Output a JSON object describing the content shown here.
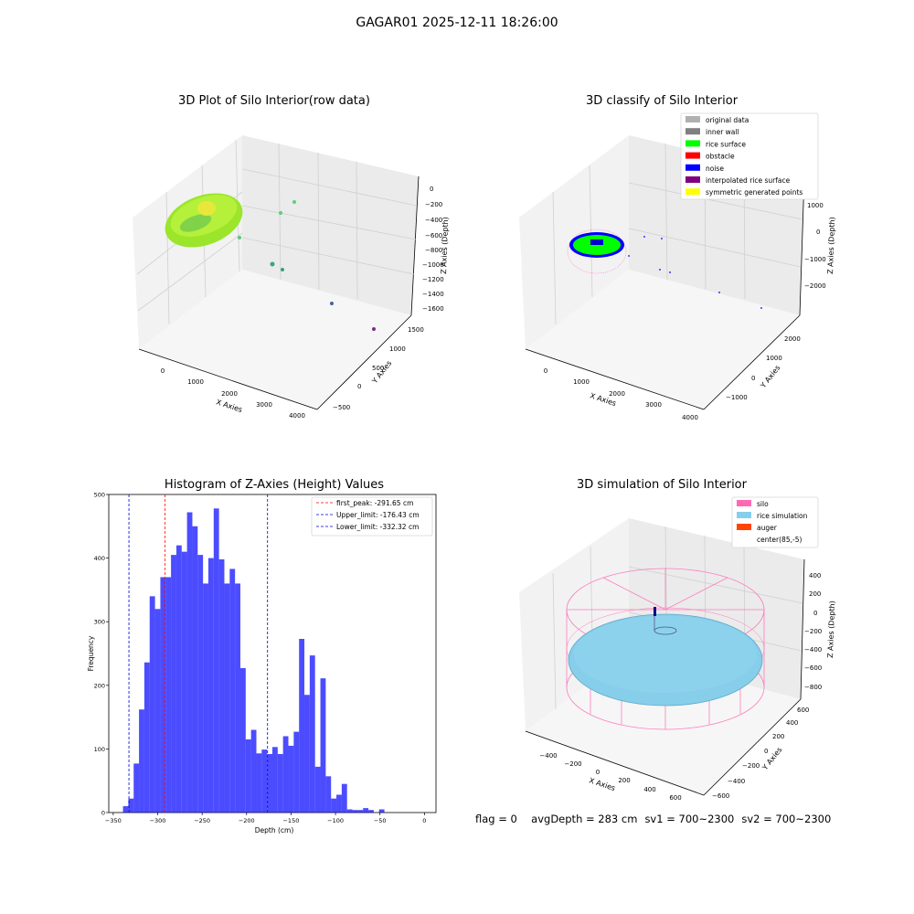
{
  "figure": {
    "suptitle": "GAGAR01 2025-12-11 18:26:00",
    "footer": {
      "flag": "flag = 0",
      "avg_depth": "avgDepth = 283 cm",
      "sv1": "sv1 = 700~2300",
      "sv2": "sv2 = 700~2300"
    }
  },
  "panels": {
    "raw": {
      "title": "3D Plot of Silo Interior(row data)",
      "xlabel": "X Axies",
      "ylabel": "Y Axies",
      "zlabel": "Z Axies (Depth)",
      "x_ticks": [
        "0",
        "1000",
        "2000",
        "3000",
        "4000"
      ],
      "y_ticks": [
        "−500",
        "0",
        "500",
        "1000",
        "1500"
      ],
      "z_ticks": [
        "0",
        "−200",
        "−400",
        "−600",
        "−800",
        "−1000",
        "−1200",
        "−1400",
        "−1600"
      ]
    },
    "classify": {
      "title": "3D classify of Silo Interior",
      "xlabel": "X Axies",
      "ylabel": "Y Axies",
      "zlabel": "Z Axies (Depth)",
      "x_ticks": [
        "0",
        "1000",
        "2000",
        "3000",
        "4000"
      ],
      "y_ticks": [
        "−1000",
        "0",
        "1000",
        "2000"
      ],
      "z_ticks": [
        "1000",
        "0",
        "−1000",
        "−2000"
      ],
      "legend": [
        {
          "label": "original data",
          "color": "#b0b0b0"
        },
        {
          "label": "inner wall",
          "color": "#808080"
        },
        {
          "label": "rice surface",
          "color": "#00ff00"
        },
        {
          "label": "obstacle",
          "color": "#ff0000"
        },
        {
          "label": "noise",
          "color": "#0000ff"
        },
        {
          "label": "interpolated rice surface",
          "color": "#800080"
        },
        {
          "label": "symmetric generated points",
          "color": "#ffff00"
        }
      ]
    },
    "simulation": {
      "title": "3D simulation of Silo Interior",
      "xlabel": "X Axies",
      "ylabel": "Y Axies",
      "zlabel": "Z Axies (Depth)",
      "x_ticks": [
        "−400",
        "−200",
        "0",
        "200",
        "400",
        "600"
      ],
      "y_ticks": [
        "−600",
        "−400",
        "−200",
        "0",
        "200",
        "400",
        "600"
      ],
      "z_ticks": [
        "400",
        "200",
        "0",
        "−200",
        "−400",
        "−600",
        "−800"
      ],
      "legend": [
        {
          "label": "silo",
          "color": "#ff69b4"
        },
        {
          "label": "rice simulation",
          "color": "#87ceeb"
        },
        {
          "label": "auger",
          "color": "#ff4500"
        },
        {
          "label": "center(85,-5)",
          "color": ""
        }
      ]
    }
  },
  "chart_data": {
    "type": "bar",
    "title": "Histogram of Z-Axies (Height) Values",
    "xlabel": "Depth (cm)",
    "ylabel": "Frequency",
    "xlim": [
      -355,
      13
    ],
    "ylim": [
      0,
      500
    ],
    "x_ticks": [
      -350,
      -300,
      -250,
      -200,
      -150,
      -100,
      -50,
      0
    ],
    "y_ticks": [
      0,
      100,
      200,
      300,
      400,
      500
    ],
    "bar_color": "#0000ff",
    "bin_start": -339,
    "bin_width": 6,
    "values": [
      10,
      22,
      77,
      162,
      236,
      340,
      320,
      370,
      370,
      405,
      420,
      410,
      472,
      450,
      405,
      360,
      400,
      478,
      398,
      360,
      383,
      360,
      227,
      115,
      130,
      93,
      99,
      92,
      103,
      92,
      120,
      105,
      127,
      273,
      185,
      247,
      72,
      211,
      57,
      22,
      28,
      45,
      5,
      4,
      4,
      7,
      4,
      0,
      5
    ],
    "vlines": [
      {
        "label": "first_peak: -291.65 cm",
        "x": -291.65,
        "color": "#ff0000"
      },
      {
        "label": "Upper_limit: -176.43 cm",
        "x": -176.43,
        "color": "#0000cd"
      },
      {
        "label": "Lower_limit: -332.32 cm",
        "x": -332.32,
        "color": "#0000cd"
      }
    ]
  }
}
